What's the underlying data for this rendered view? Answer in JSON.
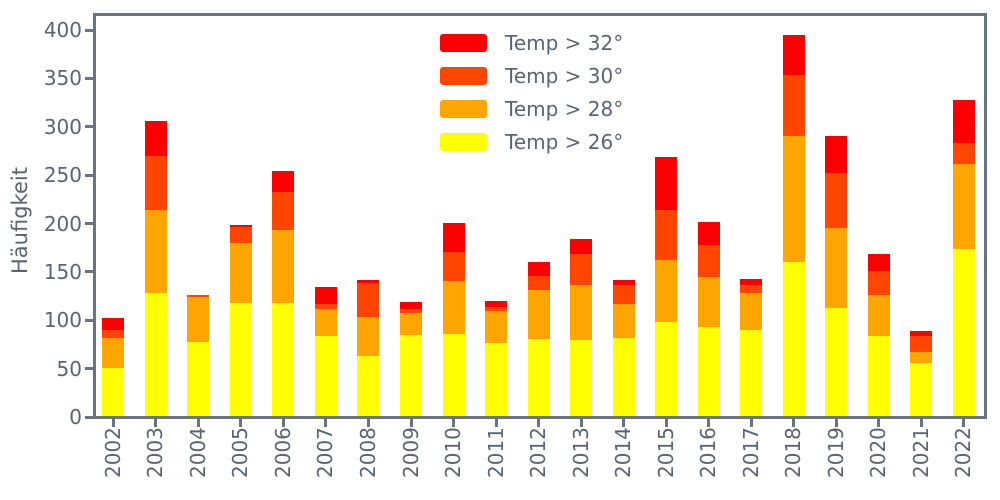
{
  "figure": {
    "ylabel": "Häufigkeit",
    "background_color": "#ffffff",
    "axis_color": "#6a7380",
    "text_color": "#5a6472"
  },
  "chart_data": {
    "type": "bar",
    "stacked": true,
    "title": "",
    "xlabel": "",
    "ylabel": "Häufigkeit",
    "categories": [
      "2002",
      "2003",
      "2004",
      "2005",
      "2006",
      "2007",
      "2008",
      "2009",
      "2010",
      "2011",
      "2012",
      "2013",
      "2014",
      "2015",
      "2016",
      "2017",
      "2018",
      "2019",
      "2020",
      "2021",
      "2022"
    ],
    "series": [
      {
        "name": "Temp > 32°",
        "color": "#fa0000",
        "values": [
          12,
          36,
          0,
          2,
          21,
          17,
          3,
          7,
          30,
          6,
          14,
          16,
          6,
          55,
          24,
          7,
          41,
          38,
          17,
          5,
          45
        ]
      },
      {
        "name": "Temp > 30°",
        "color": "#ff4500",
        "values": [
          8,
          56,
          2,
          16,
          40,
          5,
          36,
          5,
          30,
          4,
          15,
          32,
          19,
          52,
          33,
          8,
          64,
          57,
          25,
          17,
          21
        ]
      },
      {
        "name": "Temp > 28°",
        "color": "#ffa500",
        "values": [
          31,
          86,
          46,
          62,
          75,
          28,
          40,
          22,
          55,
          34,
          50,
          56,
          35,
          64,
          52,
          38,
          130,
          82,
          42,
          11,
          88
        ]
      },
      {
        "name": "Temp > 26°",
        "color": "#ffff00",
        "values": [
          51,
          128,
          78,
          118,
          118,
          84,
          63,
          85,
          86,
          76,
          81,
          80,
          82,
          98,
          93,
          90,
          160,
          113,
          84,
          56,
          174
        ]
      }
    ],
    "stack_order_bottom_to_top": [
      "Temp > 26°",
      "Temp > 28°",
      "Temp > 30°",
      "Temp > 32°"
    ],
    "bar_totals": [
      102,
      306,
      126,
      198,
      254,
      134,
      142,
      119,
      201,
      120,
      160,
      184,
      142,
      269,
      202,
      143,
      395,
      290,
      168,
      89,
      328
    ],
    "yticks": [
      0,
      50,
      100,
      150,
      200,
      250,
      300,
      350,
      400
    ],
    "ylim": [
      0,
      415
    ],
    "grid": false,
    "legend_position": "upper center-left, inside plot area"
  }
}
